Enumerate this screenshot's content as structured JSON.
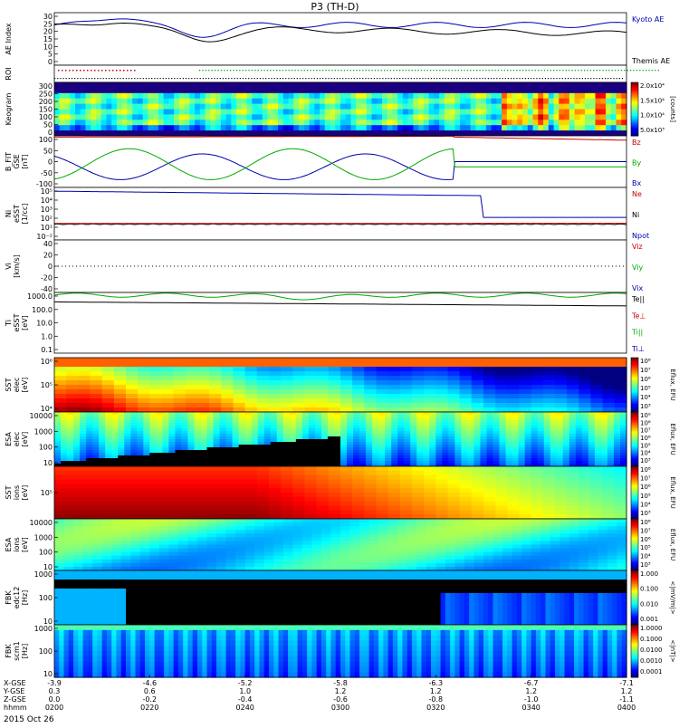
{
  "title": "P3 (TH-D)",
  "date_label": "2015 Oct 26",
  "panels": [
    {
      "id": "ae",
      "ylabel": [
        "AE Index"
      ],
      "ticks": [
        "30",
        "25",
        "20",
        "15",
        "10",
        "5",
        "0"
      ],
      "legend": [
        {
          "text": "Kyoto AE",
          "color": "#0000aa"
        },
        {
          "text": "Themis AE",
          "color": "#000000"
        }
      ]
    },
    {
      "id": "roi",
      "ylabel": [
        "ROI"
      ],
      "ticks": [],
      "legend": []
    },
    {
      "id": "keogram",
      "ylabel": [
        "Keogram"
      ],
      "ticks": [
        "300",
        "250",
        "200",
        "150",
        "100",
        "50",
        "0"
      ],
      "legend": [],
      "colorbar": {
        "labels": [
          "2.0x10⁴",
          "1.5x10⁴",
          "1.0x10⁴",
          "5.0x10³"
        ],
        "units": "[counts]"
      }
    },
    {
      "id": "bfield",
      "ylabel": [
        "B_FIT",
        "GSE",
        "[nT]"
      ],
      "ticks": [
        "100",
        "50",
        "0",
        "-50",
        "-100"
      ],
      "legend": [
        {
          "text": "Bz",
          "color": "#cc0000"
        },
        {
          "text": "By",
          "color": "#00aa00"
        },
        {
          "text": "Bx",
          "color": "#0000aa"
        }
      ]
    },
    {
      "id": "density",
      "ylabel": [
        "Ni",
        "eSST",
        "[1/cc]"
      ],
      "ticks": [
        "10⁵",
        "10⁴",
        "10³",
        "10²",
        "10¹",
        "10⁻²"
      ],
      "legend": [
        {
          "text": "Ne",
          "color": "#cc0000"
        },
        {
          "text": "Ni",
          "color": "#000000"
        },
        {
          "text": "Npot",
          "color": "#0000aa"
        }
      ]
    },
    {
      "id": "velocity",
      "ylabel": [
        "Vi",
        "[km/s]"
      ],
      "ticks": [
        "40",
        "20",
        "0",
        "-20",
        "-40"
      ],
      "legend": [
        {
          "text": "Viz",
          "color": "#cc0000"
        },
        {
          "text": "Viy",
          "color": "#00aa00"
        },
        {
          "text": "Vix",
          "color": "#0000aa"
        }
      ]
    },
    {
      "id": "temp",
      "ylabel": [
        "Ti",
        "eSST",
        "[eV]"
      ],
      "ticks": [
        "1000.0",
        "100.0",
        "10.0",
        "1.0",
        "0.1"
      ],
      "legend": [
        {
          "text": "Te||",
          "color": "#000000"
        },
        {
          "text": "Te⊥",
          "color": "#cc0000"
        },
        {
          "text": "Ti||",
          "color": "#00aa00"
        },
        {
          "text": "Ti⊥",
          "color": "#0000aa"
        }
      ]
    },
    {
      "id": "sst_e",
      "ylabel": [
        "SST",
        "elec",
        "[eV]"
      ],
      "ticks": [
        "10⁶",
        "10⁵",
        "10⁴"
      ],
      "legend": [],
      "colorbar": {
        "labels": [
          "10⁸",
          "10⁷",
          "10⁶",
          "10⁵",
          "10⁴",
          "10³"
        ],
        "units": "Eflux, EFU"
      }
    },
    {
      "id": "esa_e",
      "ylabel": [
        "ESA",
        "elec",
        "[eV]"
      ],
      "ticks": [
        "10000",
        "1000",
        "100",
        "10"
      ],
      "legend": [],
      "colorbar": {
        "labels": [
          "10⁹",
          "10⁸",
          "10⁷",
          "10⁶",
          "10⁵",
          "10⁴",
          "10³"
        ],
        "units": "Eflux, EFU"
      }
    },
    {
      "id": "sst_i",
      "ylabel": [
        "SST",
        "ions",
        "[eV]"
      ],
      "ticks": [
        "10⁵"
      ],
      "legend": [],
      "colorbar": {
        "labels": [
          "10⁸",
          "10⁷",
          "10⁶",
          "10⁵",
          "10⁴",
          "10³"
        ],
        "units": "Eflux, EFU"
      }
    },
    {
      "id": "esa_i",
      "ylabel": [
        "ESA",
        "ions",
        "[eV]"
      ],
      "ticks": [
        "10000",
        "1000",
        "100",
        "10"
      ],
      "legend": [],
      "colorbar": {
        "labels": [
          "10⁸",
          "10⁷",
          "10⁶",
          "10⁵",
          "10⁴",
          "10³"
        ],
        "units": "Eflux, EFU"
      }
    },
    {
      "id": "fbk_e",
      "ylabel": [
        "FBK",
        "edc12",
        "[Hz]"
      ],
      "ticks": [
        "1000",
        "100",
        "10"
      ],
      "legend": [],
      "colorbar": {
        "labels": [
          "1.000",
          "0.100",
          "0.010",
          "0.001"
        ],
        "units": "<|mV/m|>"
      }
    },
    {
      "id": "fbk_b",
      "ylabel": [
        "FBK",
        "scm1",
        "[Hz]"
      ],
      "ticks": [
        "1000",
        "100",
        "10"
      ],
      "legend": [],
      "colorbar": {
        "labels": [
          "1.0000",
          "0.1000",
          "0.0100",
          "0.0010",
          "0.0001"
        ],
        "units": "<|nT|>"
      }
    }
  ],
  "xaxis": {
    "rows": [
      {
        "label": "X-GSE",
        "values": [
          "-3.9",
          "-4.6",
          "-5.2",
          "-5.8",
          "-6.3",
          "-6.7",
          "-7.1"
        ]
      },
      {
        "label": "Y-GSE",
        "values": [
          "0.3",
          "0.6",
          "1.0",
          "1.2",
          "1.2",
          "1.2",
          "1.2"
        ]
      },
      {
        "label": "Z-GSE",
        "values": [
          "0.0",
          "-0.2",
          "-0.4",
          "-0.6",
          "-0.8",
          "-1.0",
          "-1.1"
        ]
      },
      {
        "label": "hhmm",
        "values": [
          "0200",
          "0220",
          "0240",
          "0300",
          "0320",
          "0340",
          "0400"
        ]
      }
    ]
  },
  "chart_data": [
    {
      "type": "line",
      "title": "AE Index",
      "x": [
        "0200",
        "0220",
        "0240",
        "0300",
        "0320",
        "0340",
        "0400"
      ],
      "series": [
        {
          "name": "Kyoto AE",
          "values": [
            23,
            28,
            17,
            20,
            23,
            21,
            21
          ]
        },
        {
          "name": "Themis AE",
          "values": [
            22,
            25,
            15,
            18,
            18,
            16,
            17
          ]
        }
      ],
      "ylim": [
        0,
        30
      ]
    },
    {
      "type": "heatmap",
      "title": "Keogram",
      "ylim": [
        0,
        300
      ],
      "zlabel": "[counts]",
      "zrange": [
        5000,
        20000
      ]
    },
    {
      "type": "line",
      "title": "B_FIT GSE",
      "ylim": [
        -100,
        100
      ],
      "series": [
        {
          "name": "Bz",
          "values": []
        },
        {
          "name": "By",
          "values": []
        },
        {
          "name": "Bx",
          "values": []
        }
      ]
    },
    {
      "type": "line",
      "title": "Ni eSST",
      "series": [
        {
          "name": "Ne"
        },
        {
          "name": "Ni"
        },
        {
          "name": "Npot"
        }
      ]
    },
    {
      "type": "line",
      "title": "Vi",
      "ylim": [
        -50,
        50
      ],
      "series": [
        {
          "name": "Viz"
        },
        {
          "name": "Viy"
        },
        {
          "name": "Vix"
        }
      ]
    },
    {
      "type": "line",
      "title": "Ti eSST",
      "ylim": [
        0.1,
        3000
      ],
      "series": [
        {
          "name": "Te||"
        },
        {
          "name": "Te⊥"
        },
        {
          "name": "Ti||"
        },
        {
          "name": "Ti⊥"
        }
      ]
    },
    {
      "type": "heatmap",
      "title": "SST elec"
    },
    {
      "type": "heatmap",
      "title": "ESA elec"
    },
    {
      "type": "heatmap",
      "title": "SST ions"
    },
    {
      "type": "heatmap",
      "title": "ESA ions"
    },
    {
      "type": "heatmap",
      "title": "FBK edc12"
    },
    {
      "type": "heatmap",
      "title": "FBK scm1"
    }
  ]
}
